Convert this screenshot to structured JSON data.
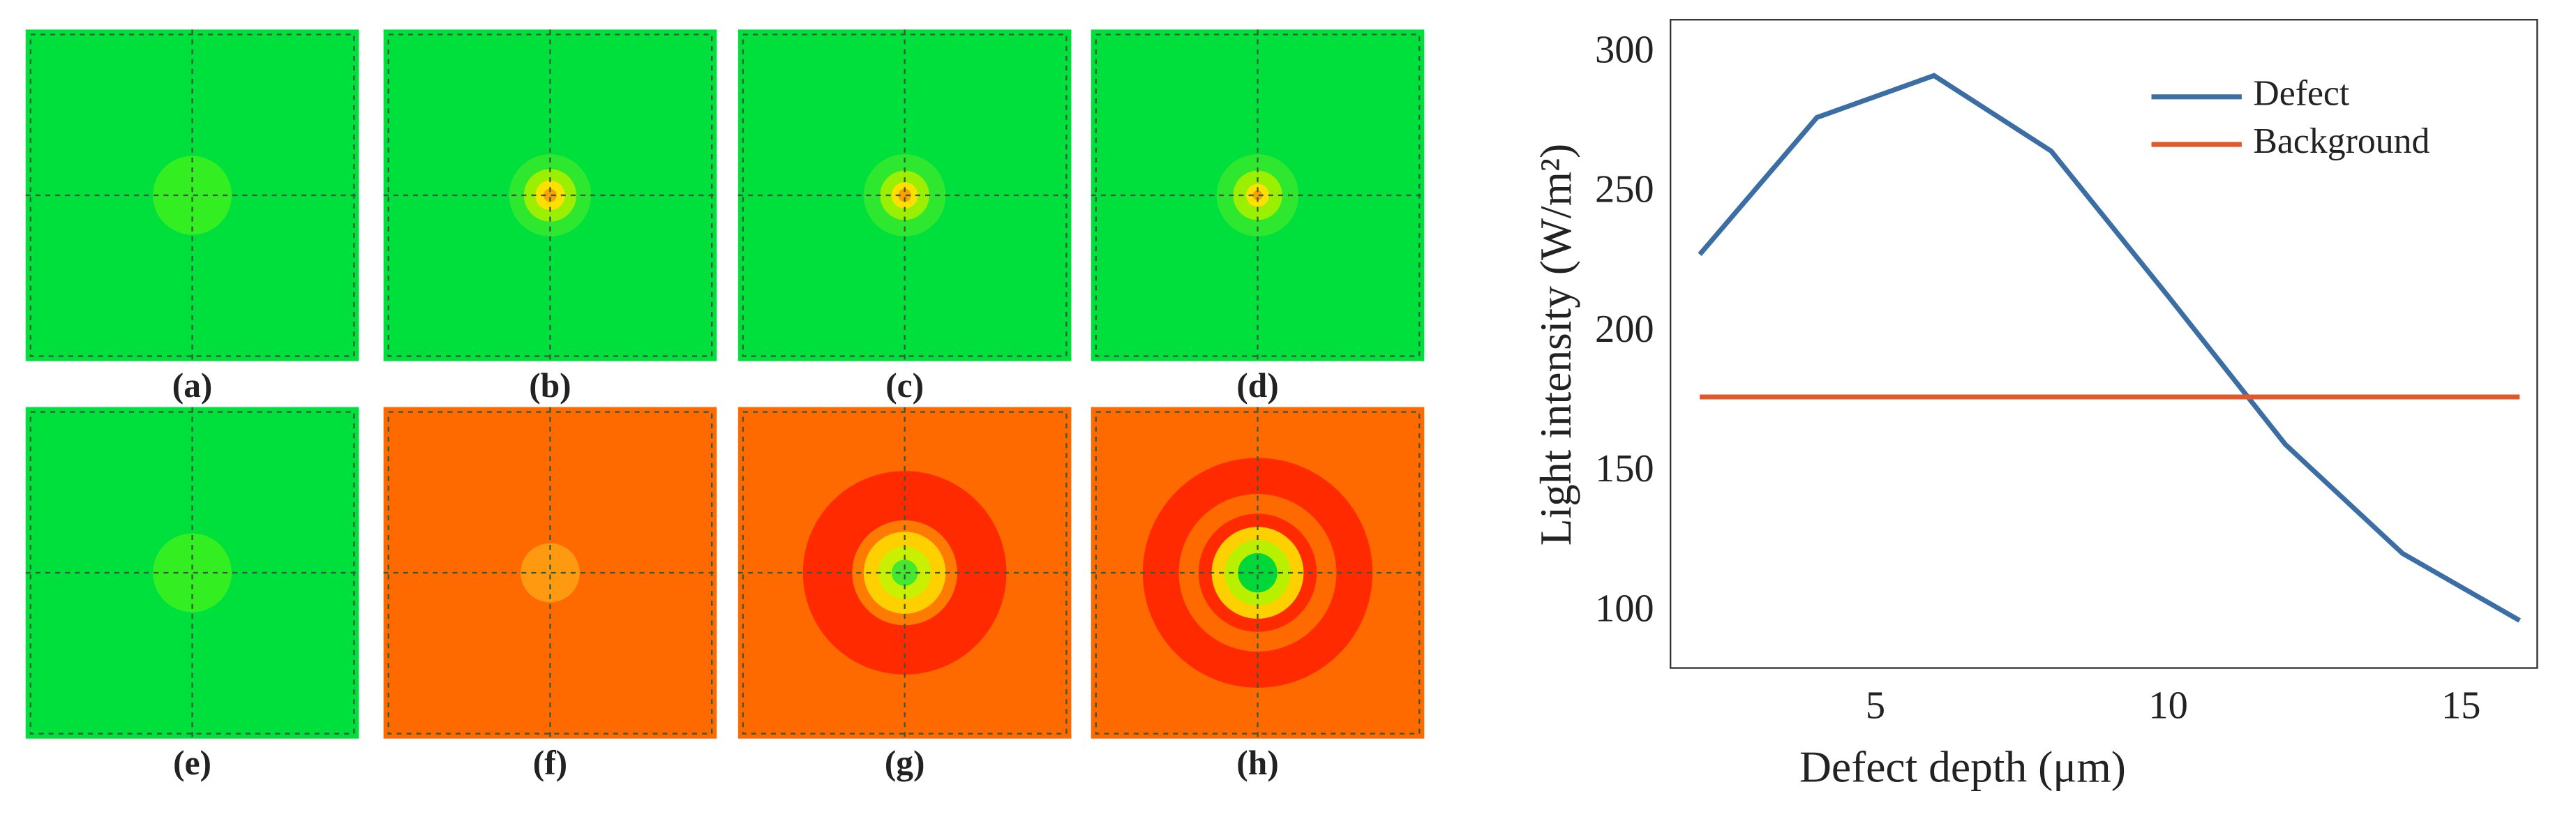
{
  "panel_labels": [
    "(a)",
    "(b)",
    "(c)",
    "(d)",
    "(e)",
    "(f)",
    "(g)",
    "(h)"
  ],
  "chart_data": {
    "type": "line",
    "xlabel": "Defect depth (μm)",
    "ylabel": "Light intensity (W/m²)",
    "x": [
      2,
      4,
      6,
      8,
      10,
      12,
      14,
      16
    ],
    "series": [
      {
        "name": "Defect",
        "color": "#3b6ea5",
        "values": [
          228,
          277,
          292,
          265,
          213,
          160,
          121,
          97
        ]
      },
      {
        "name": "Background",
        "color": "#e0592a",
        "values": [
          177,
          177,
          177,
          177,
          177,
          177,
          177,
          177
        ]
      }
    ],
    "xlim": [
      1.5,
      16.3
    ],
    "ylim": [
      80,
      312
    ],
    "xticks": [
      5,
      10,
      15
    ],
    "yticks": [
      100,
      150,
      200,
      250,
      300
    ],
    "grid": true,
    "legend": "upper right"
  }
}
